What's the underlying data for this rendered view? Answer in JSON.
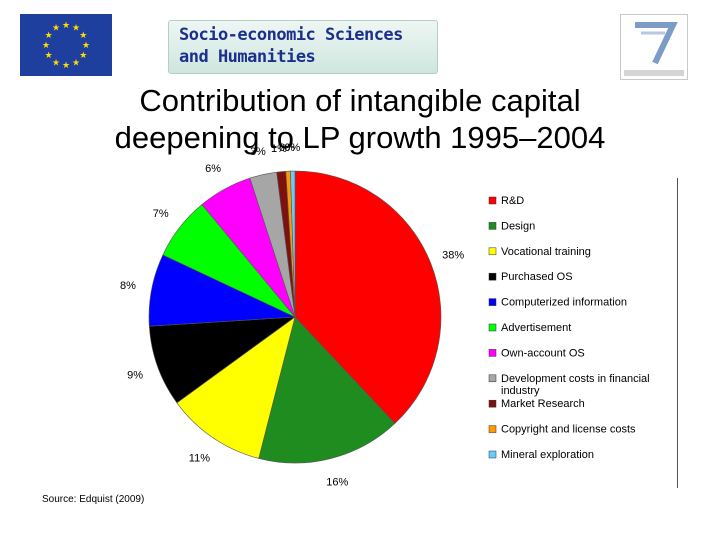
{
  "header": {
    "banner_line1": "Socio-economic Sciences",
    "banner_line2": "and Humanities"
  },
  "title_line1": "Contribution of intangible capital",
  "title_line2": "deepening to LP growth 1995–2004",
  "source": "Source: Edquist (2009)",
  "chart_data": {
    "type": "pie",
    "categories": [
      "R&D",
      "Design",
      "Vocational training",
      "Purchased OS",
      "Computerized information",
      "Advertisement",
      "Own-account OS",
      "Development costs in financial industry",
      "Market Research",
      "Copyright and license costs",
      "Mineral exploration"
    ],
    "values": [
      38,
      16,
      11,
      9,
      8,
      7,
      6,
      3,
      1,
      0.5,
      0.5
    ],
    "labels": [
      "38%",
      "16%",
      "11%",
      "9%",
      "8%",
      "7%",
      "6%",
      "3%",
      "1%",
      "0%",
      "0%"
    ],
    "colors": [
      "#ff0000",
      "#1e8c1e",
      "#ffff00",
      "#000000",
      "#0000ff",
      "#00ff00",
      "#ff00ff",
      "#a6a6a6",
      "#7f1010",
      "#ff9900",
      "#66ccff"
    ],
    "legend_position": "right"
  }
}
